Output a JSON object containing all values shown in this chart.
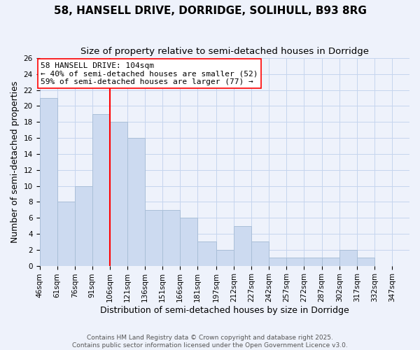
{
  "title": "58, HANSELL DRIVE, DORRIDGE, SOLIHULL, B93 8RG",
  "subtitle": "Size of property relative to semi-detached houses in Dorridge",
  "xlabel": "Distribution of semi-detached houses by size in Dorridge",
  "ylabel": "Number of semi-detached properties",
  "bar_labels": [
    "46sqm",
    "61sqm",
    "76sqm",
    "91sqm",
    "106sqm",
    "121sqm",
    "136sqm",
    "151sqm",
    "166sqm",
    "181sqm",
    "197sqm",
    "212sqm",
    "227sqm",
    "242sqm",
    "257sqm",
    "272sqm",
    "287sqm",
    "302sqm",
    "317sqm",
    "332sqm",
    "347sqm"
  ],
  "bar_values": [
    21,
    8,
    10,
    19,
    18,
    16,
    7,
    7,
    6,
    3,
    2,
    5,
    3,
    1,
    1,
    1,
    1,
    2,
    1,
    0,
    0
  ],
  "bin_edges": [
    46,
    61,
    76,
    91,
    106,
    121,
    136,
    151,
    166,
    181,
    197,
    212,
    227,
    242,
    257,
    272,
    287,
    302,
    317,
    332,
    347,
    362
  ],
  "bar_color": "#ccdaf0",
  "bar_edgecolor": "#aabfd8",
  "grid_color": "#c5d5ee",
  "background_color": "#eef2fb",
  "red_line_x": 106,
  "ylim": [
    0,
    26
  ],
  "yticks": [
    0,
    2,
    4,
    6,
    8,
    10,
    12,
    14,
    16,
    18,
    20,
    22,
    24,
    26
  ],
  "annotation_title": "58 HANSELL DRIVE: 104sqm",
  "annotation_line1": "← 40% of semi-detached houses are smaller (52)",
  "annotation_line2": "59% of semi-detached houses are larger (77) →",
  "footer_line1": "Contains HM Land Registry data © Crown copyright and database right 2025.",
  "footer_line2": "Contains public sector information licensed under the Open Government Licence v3.0.",
  "title_fontsize": 11,
  "subtitle_fontsize": 9.5,
  "axis_label_fontsize": 9,
  "tick_fontsize": 7.5,
  "annotation_fontsize": 8,
  "footer_fontsize": 6.5
}
